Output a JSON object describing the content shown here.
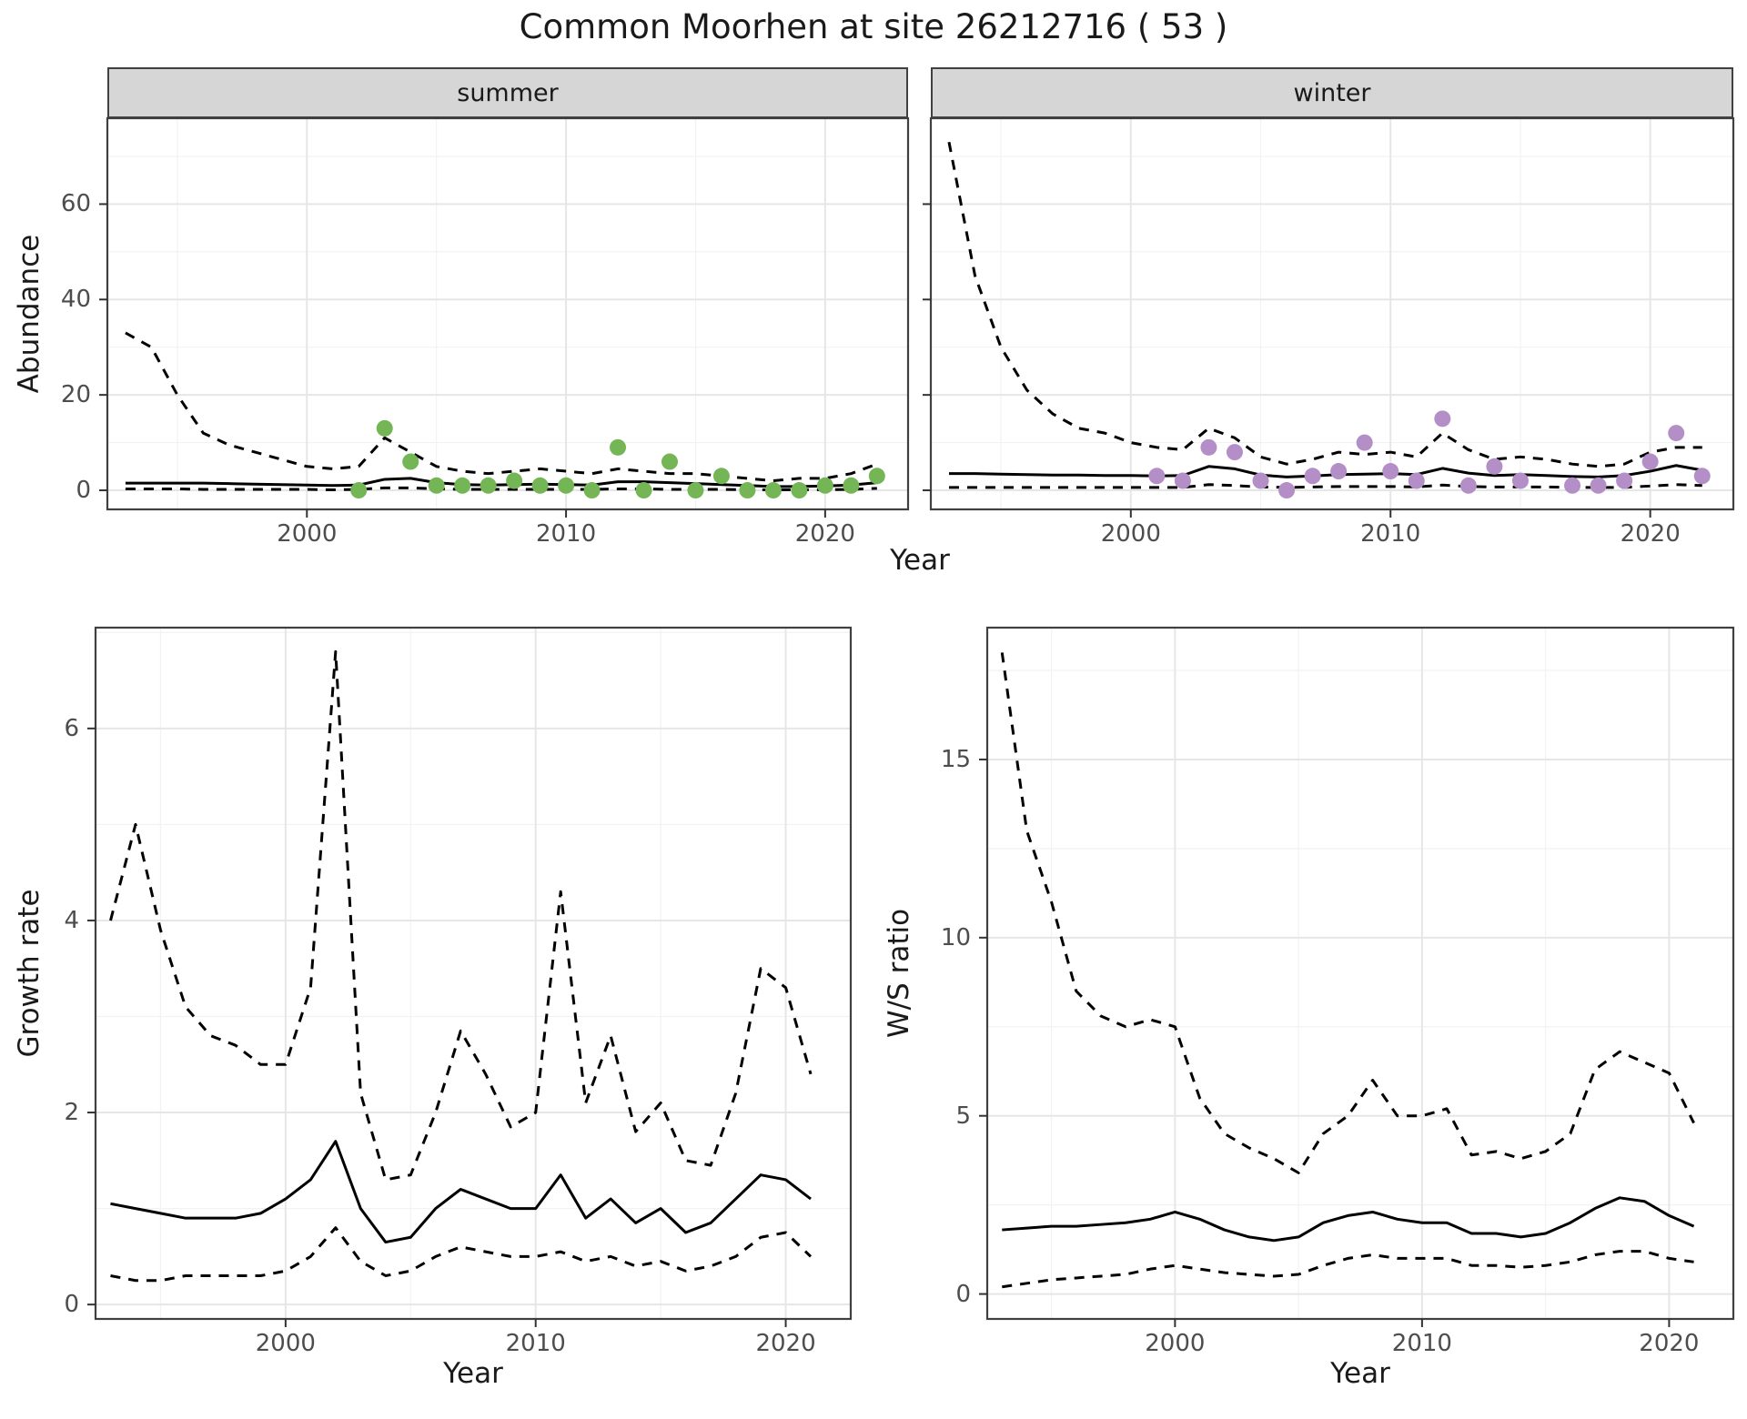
{
  "title": "Common Moorhen at site 26212716 ( 53 )",
  "colors": {
    "summer_point": "#74b656",
    "winter_point": "#b48ec6",
    "mean_line": "#000000",
    "ci_line": "#000000",
    "strip_bg": "#d6d6d6",
    "panel_border": "#404040",
    "grid_major": "#e6e6e6",
    "grid_minor": "#f2f2f2",
    "tick_text": "#4d4d4d"
  },
  "chart_data": [
    {
      "id": "abundance-summer",
      "type": "line",
      "strip": "summer",
      "xlabel": "Year",
      "ylabel": "Abundance",
      "xlim": [
        1992.3,
        2023.2
      ],
      "ylim": [
        -4,
        78
      ],
      "xticks": [
        2000,
        2010,
        2020
      ],
      "yticks": [
        0,
        20,
        40,
        60
      ],
      "grid": true,
      "years": [
        1993,
        1994,
        1995,
        1996,
        1997,
        1998,
        1999,
        2000,
        2001,
        2002,
        2003,
        2004,
        2005,
        2006,
        2007,
        2008,
        2009,
        2010,
        2011,
        2012,
        2013,
        2014,
        2015,
        2016,
        2017,
        2018,
        2019,
        2020,
        2021,
        2022
      ],
      "series": [
        {
          "name": "mean",
          "style": "solid",
          "values": [
            1.5,
            1.5,
            1.5,
            1.5,
            1.4,
            1.3,
            1.2,
            1.1,
            1.0,
            1.1,
            2.3,
            2.5,
            1.6,
            1.2,
            1.1,
            1.2,
            1.3,
            1.2,
            1.1,
            1.8,
            1.8,
            1.6,
            1.4,
            1.2,
            1.0,
            0.8,
            0.8,
            0.9,
            1.1,
            1.6
          ]
        },
        {
          "name": "upper-ci",
          "style": "dashed",
          "values": [
            33,
            30,
            20,
            12,
            9.5,
            8,
            6.5,
            5,
            4.5,
            5,
            11,
            8,
            5,
            4,
            3.5,
            4,
            4.5,
            4,
            3.5,
            4.5,
            4,
            3.5,
            3.5,
            3,
            2.5,
            2,
            2.5,
            2.5,
            3.5,
            5.5
          ]
        },
        {
          "name": "lower-ci",
          "style": "dashed",
          "values": [
            0.3,
            0.3,
            0.3,
            0.2,
            0.2,
            0.2,
            0.2,
            0.2,
            0.1,
            0.2,
            0.5,
            0.5,
            0.3,
            0.2,
            0.2,
            0.2,
            0.2,
            0.2,
            0.2,
            0.3,
            0.3,
            0.2,
            0.2,
            0.2,
            0.1,
            0.1,
            0.1,
            0.1,
            0.2,
            0.4
          ]
        }
      ],
      "points": {
        "name": "observed-summer",
        "color_key": "summer_point",
        "years": [
          2002,
          2003,
          2004,
          2005,
          2006,
          2007,
          2008,
          2009,
          2010,
          2011,
          2012,
          2013,
          2014,
          2015,
          2016,
          2017,
          2018,
          2019,
          2020,
          2021,
          2022
        ],
        "values": [
          0,
          13,
          6,
          1,
          1,
          1,
          2,
          1,
          1,
          0,
          9,
          0,
          6,
          0,
          3,
          0,
          0,
          0,
          1,
          1,
          3
        ]
      }
    },
    {
      "id": "abundance-winter",
      "type": "line",
      "strip": "winter",
      "xlabel": "Year",
      "ylabel": "Abundance",
      "xlim": [
        1992.3,
        2023.2
      ],
      "ylim": [
        -4,
        78
      ],
      "xticks": [
        2000,
        2010,
        2020
      ],
      "yticks": [
        0,
        20,
        40,
        60
      ],
      "grid": true,
      "years": [
        1993,
        1994,
        1995,
        1996,
        1997,
        1998,
        1999,
        2000,
        2001,
        2002,
        2003,
        2004,
        2005,
        2006,
        2007,
        2008,
        2009,
        2010,
        2011,
        2012,
        2013,
        2014,
        2015,
        2016,
        2017,
        2018,
        2019,
        2020,
        2021,
        2022
      ],
      "series": [
        {
          "name": "mean",
          "style": "solid",
          "values": [
            3.5,
            3.5,
            3.4,
            3.3,
            3.2,
            3.2,
            3.1,
            3.1,
            3.0,
            3.1,
            5.0,
            4.5,
            3.2,
            2.8,
            3.0,
            3.3,
            3.4,
            3.5,
            3.3,
            4.6,
            3.6,
            3.1,
            3.3,
            3.1,
            2.9,
            2.8,
            3.1,
            4.0,
            5.2,
            4.2
          ]
        },
        {
          "name": "upper-ci",
          "style": "dashed",
          "values": [
            73,
            45,
            30,
            21,
            16,
            13,
            12,
            10,
            9,
            8.5,
            13,
            11,
            7,
            5.5,
            6.5,
            8,
            7.5,
            8,
            7,
            12,
            8.5,
            6.5,
            7,
            6.5,
            5.5,
            5,
            5.5,
            8,
            9,
            9
          ]
        },
        {
          "name": "lower-ci",
          "style": "dashed",
          "values": [
            0.6,
            0.6,
            0.6,
            0.6,
            0.6,
            0.6,
            0.6,
            0.6,
            0.6,
            0.6,
            1.2,
            1.0,
            0.7,
            0.6,
            0.7,
            0.8,
            0.8,
            0.8,
            0.7,
            1.1,
            0.8,
            0.7,
            0.7,
            0.7,
            0.6,
            0.6,
            0.6,
            0.9,
            1.2,
            1.0
          ]
        }
      ],
      "points": {
        "name": "observed-winter",
        "color_key": "winter_point",
        "years": [
          2001,
          2002,
          2003,
          2004,
          2005,
          2006,
          2007,
          2008,
          2009,
          2010,
          2011,
          2012,
          2013,
          2014,
          2015,
          2017,
          2018,
          2019,
          2020,
          2021,
          2022
        ],
        "values": [
          3,
          2,
          9,
          8,
          2,
          0,
          3,
          4,
          10,
          4,
          2,
          15,
          1,
          5,
          2,
          1,
          1,
          2,
          6,
          12,
          3
        ]
      }
    },
    {
      "id": "growth-rate",
      "type": "line",
      "strip": "",
      "xlabel": "Year",
      "ylabel": "Growth rate",
      "xlim": [
        1992.4,
        2022.6
      ],
      "ylim": [
        -0.15,
        7.05
      ],
      "xticks": [
        2000,
        2010,
        2020
      ],
      "yticks": [
        0,
        2,
        4,
        6
      ],
      "grid": true,
      "years": [
        1993,
        1994,
        1995,
        1996,
        1997,
        1998,
        1999,
        2000,
        2001,
        2002,
        2003,
        2004,
        2005,
        2006,
        2007,
        2008,
        2009,
        2010,
        2011,
        2012,
        2013,
        2014,
        2015,
        2016,
        2017,
        2018,
        2019,
        2020,
        2021
      ],
      "series": [
        {
          "name": "mean",
          "style": "solid",
          "values": [
            1.05,
            1.0,
            0.95,
            0.9,
            0.9,
            0.9,
            0.95,
            1.1,
            1.3,
            1.7,
            1.0,
            0.65,
            0.7,
            1.0,
            1.2,
            1.1,
            1.0,
            1.0,
            1.35,
            0.9,
            1.1,
            0.85,
            1.0,
            0.75,
            0.85,
            1.1,
            1.35,
            1.3,
            1.1
          ]
        },
        {
          "name": "upper-ci",
          "style": "dashed",
          "values": [
            4.0,
            5.0,
            3.9,
            3.1,
            2.8,
            2.7,
            2.5,
            2.5,
            3.3,
            6.8,
            2.2,
            1.3,
            1.35,
            2.0,
            2.85,
            2.4,
            1.85,
            2.0,
            4.3,
            2.1,
            2.8,
            1.8,
            2.1,
            1.5,
            1.45,
            2.2,
            3.5,
            3.3,
            2.4
          ]
        },
        {
          "name": "lower-ci",
          "style": "dashed",
          "values": [
            0.3,
            0.25,
            0.25,
            0.3,
            0.3,
            0.3,
            0.3,
            0.35,
            0.5,
            0.8,
            0.45,
            0.3,
            0.35,
            0.5,
            0.6,
            0.55,
            0.5,
            0.5,
            0.55,
            0.45,
            0.5,
            0.4,
            0.45,
            0.35,
            0.4,
            0.5,
            0.7,
            0.75,
            0.5
          ]
        }
      ],
      "points": null
    },
    {
      "id": "ws-ratio",
      "type": "line",
      "strip": "",
      "xlabel": "Year",
      "ylabel": "W/S ratio",
      "xlim": [
        1992.4,
        2022.6
      ],
      "ylim": [
        -0.7,
        18.7
      ],
      "xticks": [
        2000,
        2010,
        2020
      ],
      "yticks": [
        0,
        5,
        10,
        15
      ],
      "grid": true,
      "years": [
        1993,
        1994,
        1995,
        1996,
        1997,
        1998,
        1999,
        2000,
        2001,
        2002,
        2003,
        2004,
        2005,
        2006,
        2007,
        2008,
        2009,
        2010,
        2011,
        2012,
        2013,
        2014,
        2015,
        2016,
        2017,
        2018,
        2019,
        2020,
        2021
      ],
      "series": [
        {
          "name": "mean",
          "style": "solid",
          "values": [
            1.8,
            1.85,
            1.9,
            1.9,
            1.95,
            2.0,
            2.1,
            2.3,
            2.1,
            1.8,
            1.6,
            1.5,
            1.6,
            2.0,
            2.2,
            2.3,
            2.1,
            2.0,
            2.0,
            1.7,
            1.7,
            1.6,
            1.7,
            2.0,
            2.4,
            2.7,
            2.6,
            2.2,
            1.9
          ]
        },
        {
          "name": "upper-ci",
          "style": "dashed",
          "values": [
            18,
            13,
            11,
            8.5,
            7.8,
            7.5,
            7.7,
            7.5,
            5.5,
            4.5,
            4.1,
            3.8,
            3.4,
            4.5,
            5.0,
            6.0,
            5.0,
            5.0,
            5.2,
            3.9,
            4.0,
            3.8,
            4.0,
            4.5,
            6.3,
            6.8,
            6.5,
            6.2,
            4.8
          ]
        },
        {
          "name": "lower-ci",
          "style": "dashed",
          "values": [
            0.2,
            0.3,
            0.4,
            0.45,
            0.5,
            0.55,
            0.7,
            0.8,
            0.7,
            0.6,
            0.55,
            0.5,
            0.55,
            0.8,
            1.0,
            1.1,
            1.0,
            1.0,
            1.0,
            0.8,
            0.8,
            0.75,
            0.8,
            0.9,
            1.1,
            1.2,
            1.2,
            1.0,
            0.9
          ]
        }
      ],
      "points": null
    }
  ]
}
